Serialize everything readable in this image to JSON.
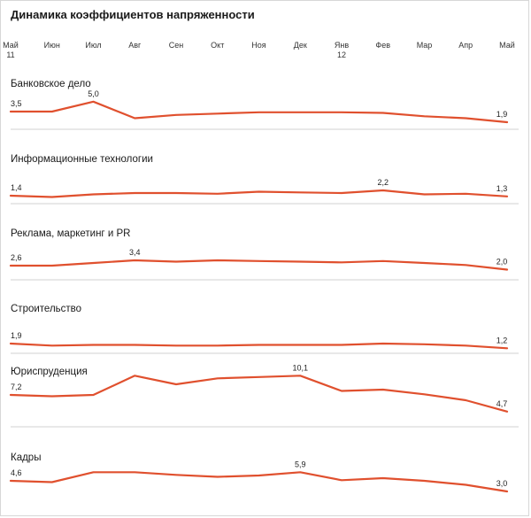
{
  "chart_data": {
    "type": "line",
    "title": "Динамика коэффициентов напряженности",
    "x": [
      {
        "label": "Май",
        "sub": "11"
      },
      {
        "label": "Июн",
        "sub": ""
      },
      {
        "label": "Июл",
        "sub": ""
      },
      {
        "label": "Авг",
        "sub": ""
      },
      {
        "label": "Сен",
        "sub": ""
      },
      {
        "label": "Окт",
        "sub": ""
      },
      {
        "label": "Ноя",
        "sub": ""
      },
      {
        "label": "Дек",
        "sub": ""
      },
      {
        "label": "Янв",
        "sub": "12"
      },
      {
        "label": "Фев",
        "sub": ""
      },
      {
        "label": "Мар",
        "sub": ""
      },
      {
        "label": "Апр",
        "sub": ""
      },
      {
        "label": "Май",
        "sub": ""
      }
    ],
    "line_color": "#e0502e",
    "scale_per_unit": 7.5,
    "series": [
      {
        "name": "Банковское дело",
        "values": [
          3.5,
          3.5,
          5.0,
          2.5,
          3.0,
          3.2,
          3.4,
          3.4,
          3.4,
          3.3,
          2.8,
          2.5,
          1.9
        ],
        "labels": [
          {
            "index": 0,
            "text": "3,5"
          },
          {
            "index": 2,
            "text": "5,0"
          },
          {
            "index": 12,
            "text": "1,9"
          }
        ]
      },
      {
        "name": "Информационные технологии",
        "values": [
          1.4,
          1.2,
          1.6,
          1.8,
          1.8,
          1.7,
          2.0,
          1.9,
          1.8,
          2.2,
          1.6,
          1.7,
          1.3
        ],
        "labels": [
          {
            "index": 0,
            "text": "1,4"
          },
          {
            "index": 9,
            "text": "2,2"
          },
          {
            "index": 12,
            "text": "1,3"
          }
        ]
      },
      {
        "name": "Реклама, маркетинг и PR",
        "values": [
          2.6,
          2.6,
          3.0,
          3.4,
          3.2,
          3.4,
          3.3,
          3.2,
          3.1,
          3.3,
          3.0,
          2.7,
          2.0
        ],
        "labels": [
          {
            "index": 0,
            "text": "2,6"
          },
          {
            "index": 3,
            "text": "3,4"
          },
          {
            "index": 12,
            "text": "2,0"
          }
        ]
      },
      {
        "name": "Строительство",
        "values": [
          1.9,
          1.6,
          1.7,
          1.7,
          1.6,
          1.6,
          1.7,
          1.7,
          1.7,
          1.9,
          1.8,
          1.6,
          1.2
        ],
        "labels": [
          {
            "index": 0,
            "text": "1,9"
          },
          {
            "index": 12,
            "text": "1,2"
          }
        ]
      },
      {
        "name": "Юриспруденция",
        "values": [
          7.2,
          7.0,
          7.2,
          10.1,
          8.8,
          9.7,
          9.9,
          10.1,
          7.8,
          8.0,
          7.3,
          6.4,
          4.7
        ],
        "labels": [
          {
            "index": 0,
            "text": "7,2"
          },
          {
            "index": 7,
            "text": "10,1"
          },
          {
            "index": 12,
            "text": "4,7"
          }
        ]
      },
      {
        "name": "Кадры",
        "values": [
          4.6,
          4.4,
          5.9,
          5.9,
          5.5,
          5.2,
          5.4,
          5.9,
          4.7,
          5.0,
          4.6,
          4.0,
          3.0
        ],
        "labels": [
          {
            "index": 0,
            "text": "4,6"
          },
          {
            "index": 7,
            "text": "5,9"
          },
          {
            "index": 12,
            "text": "3,0"
          }
        ]
      }
    ]
  }
}
